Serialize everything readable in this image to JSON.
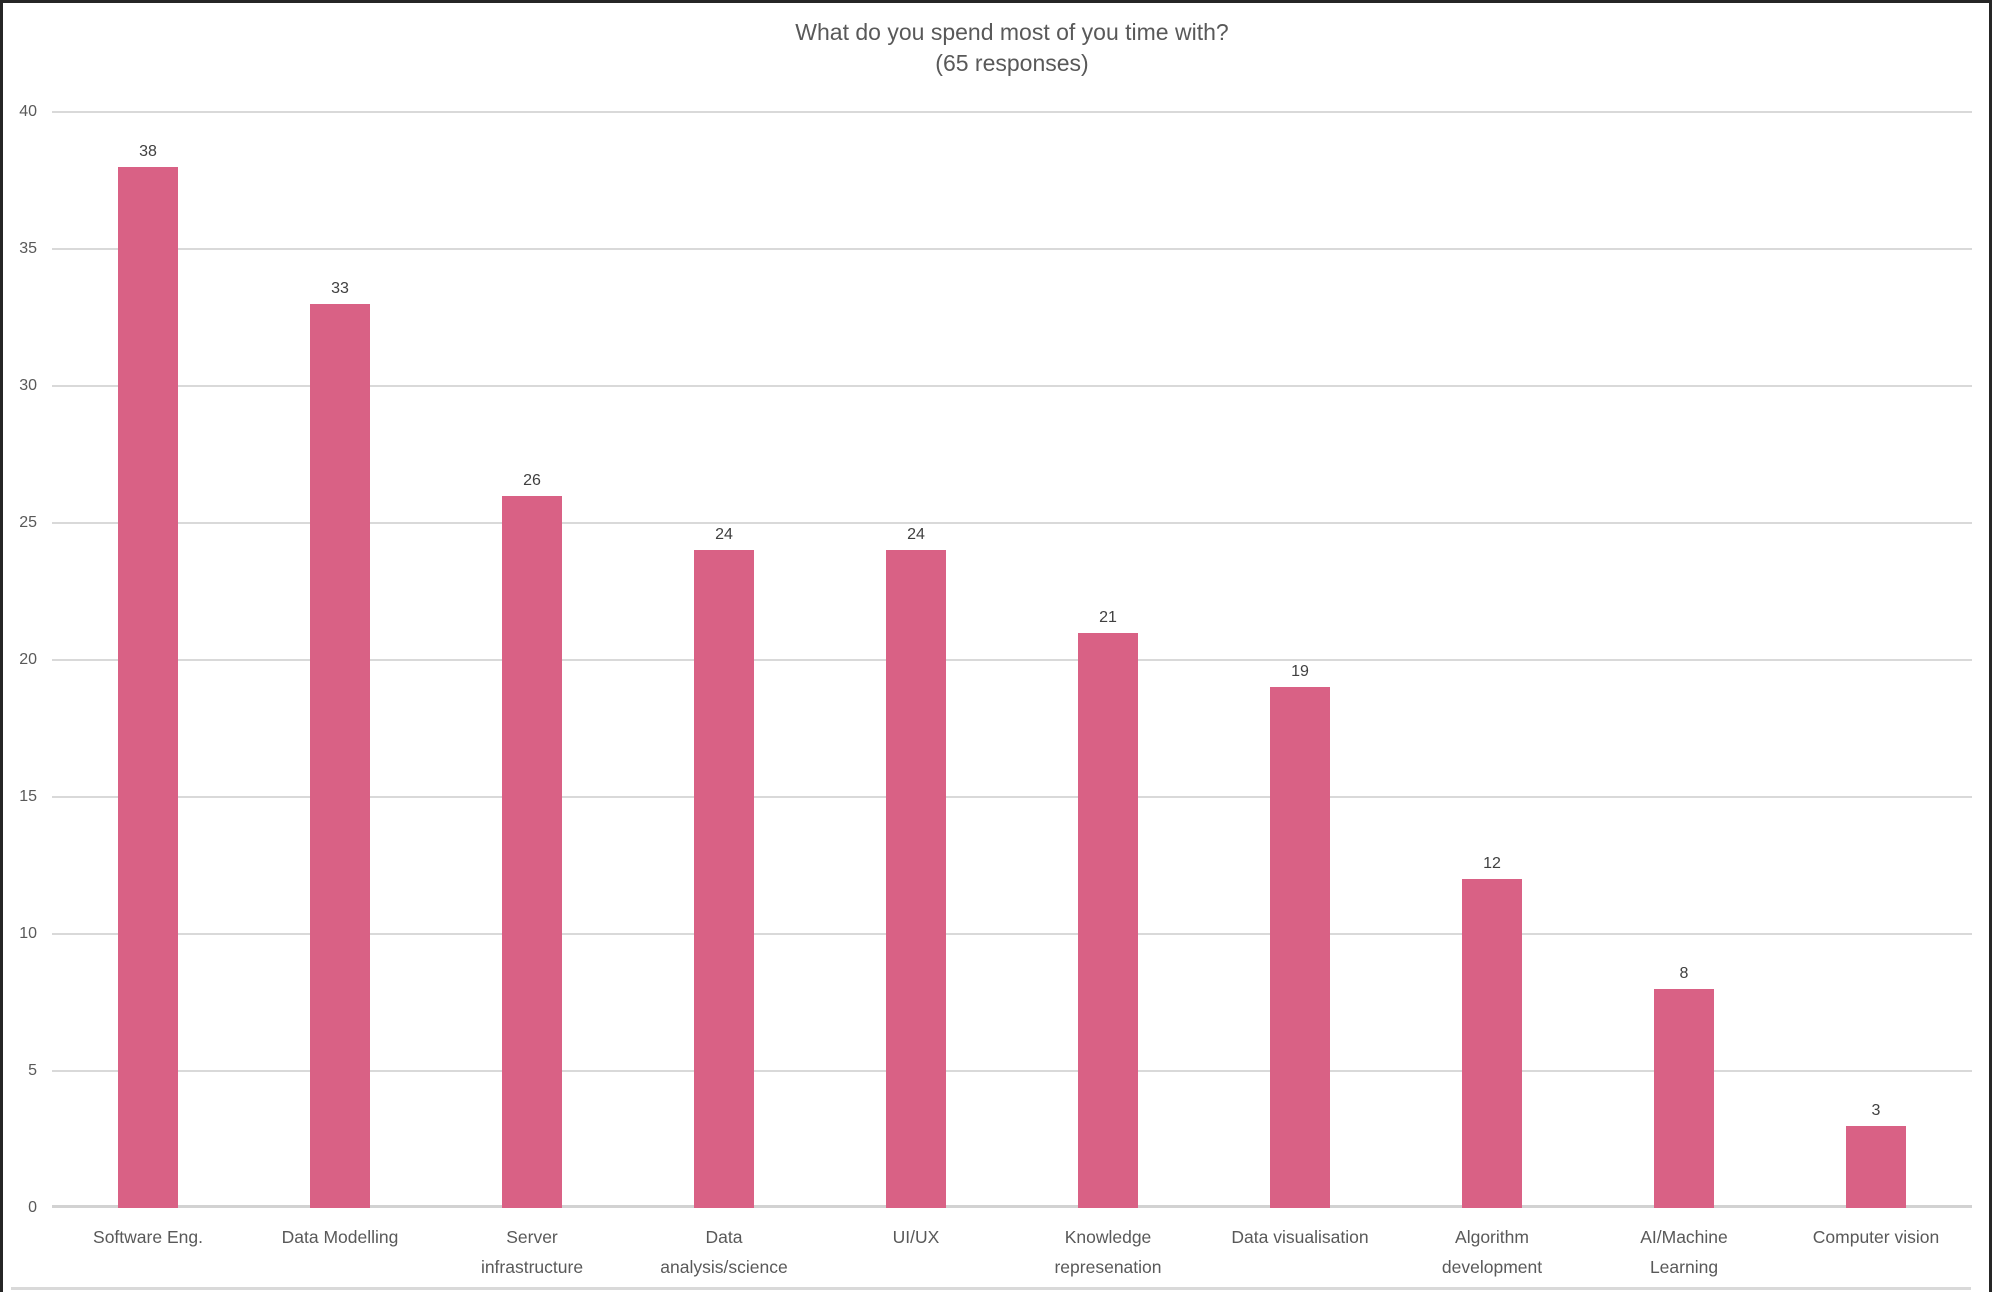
{
  "window": {
    "background": "#ffffff",
    "border_color": "#262626"
  },
  "chart_data": {
    "type": "bar",
    "title": "What do you spend most of you time with?",
    "subtitle": "(65 responses)",
    "categories": [
      "Software Eng.",
      "Data Modelling",
      "Server infrastructure",
      "Data analysis/science",
      "UI/UX",
      "Knowledge represenation",
      "Data visualisation",
      "Algorithm development",
      "AI/Machine Learning",
      "Computer vision"
    ],
    "category_lines": [
      [
        "Software Eng."
      ],
      [
        "Data Modelling"
      ],
      [
        "Server",
        "infrastructure"
      ],
      [
        "Data",
        "analysis/science"
      ],
      [
        "UI/UX"
      ],
      [
        "Knowledge",
        "represenation"
      ],
      [
        "Data visualisation"
      ],
      [
        "Algorithm",
        "development"
      ],
      [
        "AI/Machine",
        "Learning"
      ],
      [
        "Computer vision"
      ]
    ],
    "values": [
      38,
      33,
      26,
      24,
      24,
      21,
      19,
      12,
      8,
      3
    ],
    "data_labels": true,
    "grid": true,
    "legend": "none",
    "ylim": [
      0,
      40
    ],
    "yticks": [
      0,
      5,
      10,
      15,
      20,
      25,
      30,
      35,
      40
    ],
    "bar_color": "#d96185",
    "gridline_color": "#d9d9d9",
    "axis_line_color": "#d2d2d2",
    "frame_line_color": "#d9d9d9",
    "title_color": "#595959",
    "tick_label_color": "#595959",
    "data_label_color": "#404040"
  }
}
